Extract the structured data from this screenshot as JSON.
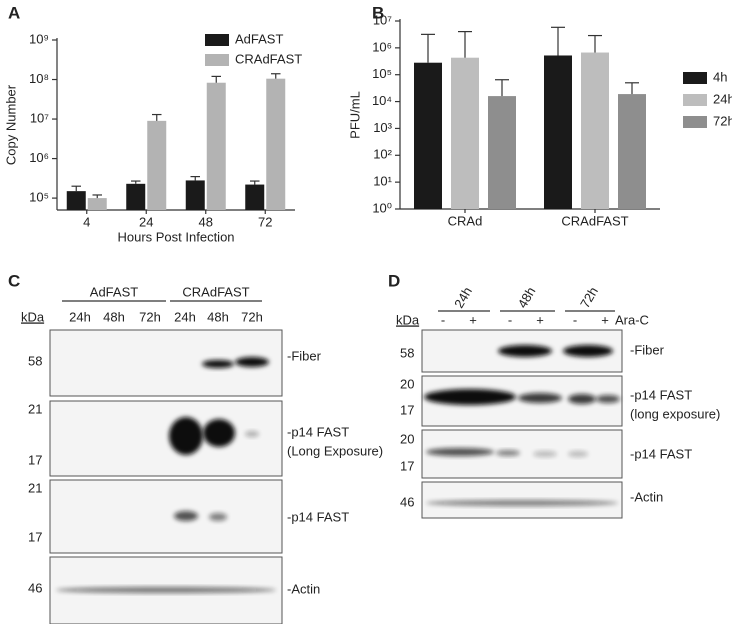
{
  "chart_data": [
    {
      "type": "bar",
      "panel_label": "A",
      "y_label": "Copy Number",
      "x_label": "Hours Post Infection",
      "categories": [
        "4",
        "24",
        "48",
        "72"
      ],
      "series": [
        {
          "name": "AdFAST",
          "color": "#1a1a1a",
          "values": [
            150000,
            230000,
            280000,
            220000
          ],
          "errors": [
            50000,
            40000,
            70000,
            50000
          ]
        },
        {
          "name": "CRAdFAST",
          "color": "#b3b3b3",
          "values": [
            100000,
            9000000,
            83000000,
            105000000
          ],
          "errors": [
            20000,
            4000000,
            37000000,
            35000000
          ]
        }
      ],
      "log_scale": true,
      "ylim": [
        50000,
        1000000000
      ],
      "yticks": [
        {
          "value": 100000,
          "label": "10⁵"
        },
        {
          "value": 1000000,
          "label": "10⁶"
        },
        {
          "value": 10000000,
          "label": "10⁷"
        },
        {
          "value": 100000000,
          "label": "10⁸"
        },
        {
          "value": 1000000000,
          "label": "10⁹"
        }
      ],
      "legend": "upper-right"
    },
    {
      "type": "bar",
      "panel_label": "B",
      "y_label": "PFU/mL",
      "categories": [
        "CRAd",
        "CRAdFAST"
      ],
      "series": [
        {
          "name": "4h",
          "color": "#1a1a1a",
          "values": [
            280000,
            520000
          ],
          "errors": [
            2900000,
            5300000
          ]
        },
        {
          "name": "24h",
          "color": "#bdbdbd",
          "values": [
            430000,
            670000
          ],
          "errors": [
            3600000,
            2200000
          ]
        },
        {
          "name": "72h",
          "color": "#8e8e8e",
          "values": [
            16000,
            19000
          ],
          "errors": [
            49000,
            31000
          ]
        }
      ],
      "log_scale": true,
      "ylim": [
        1,
        10000000
      ],
      "yticks": [
        {
          "value": 1,
          "label": "10⁰"
        },
        {
          "value": 10,
          "label": "10¹"
        },
        {
          "value": 100,
          "label": "10²"
        },
        {
          "value": 1000,
          "label": "10³"
        },
        {
          "value": 10000,
          "label": "10⁴"
        },
        {
          "value": 100000,
          "label": "10⁵"
        },
        {
          "value": 1000000,
          "label": "10⁶"
        },
        {
          "value": 10000000,
          "label": "10⁷"
        }
      ],
      "legend": "right"
    }
  ],
  "blot_c": {
    "panel_label": "C",
    "groups": [
      "AdFAST",
      "CRAdFAST"
    ],
    "lanes": [
      "24h",
      "48h",
      "72h",
      "24h",
      "48h",
      "72h"
    ],
    "unit": "kDa",
    "rows": [
      {
        "markers": [
          "58"
        ],
        "label": "-Fiber"
      },
      {
        "markers": [
          "21",
          "17"
        ],
        "label": "-p14 FAST",
        "note": "(Long Exposure)"
      },
      {
        "markers": [
          "21",
          "17"
        ],
        "label": "-p14 FAST"
      },
      {
        "markers": [
          "46"
        ],
        "label": "-Actin"
      }
    ]
  },
  "blot_d": {
    "panel_label": "D",
    "timepoints": [
      "24h",
      "48h",
      "72h"
    ],
    "lanes": [
      "-",
      "+",
      "-",
      "+",
      "-",
      "+"
    ],
    "treatment": "Ara-C",
    "unit": "kDa",
    "rows": [
      {
        "markers": [
          "58"
        ],
        "label": "-Fiber"
      },
      {
        "markers": [
          "20",
          "17"
        ],
        "label": "-p14 FAST",
        "note": "(long exposure)"
      },
      {
        "markers": [
          "20",
          "17"
        ],
        "label": "-p14 FAST"
      },
      {
        "markers": [
          "46"
        ],
        "label": "-Actin"
      }
    ]
  }
}
